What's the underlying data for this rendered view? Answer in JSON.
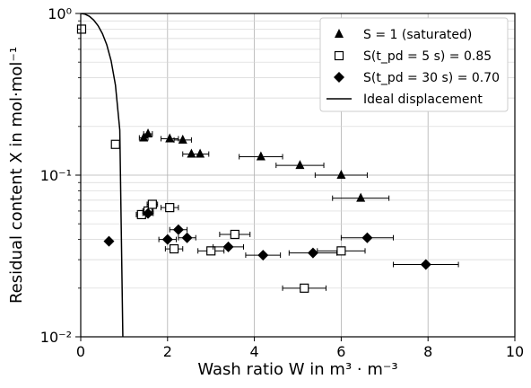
{
  "chart_data": {
    "type": "scatter",
    "xlabel": "Wash ratio W in m³ · m⁻³",
    "ylabel": "Residual content X in mol·mol⁻¹",
    "xlim": [
      0,
      10
    ],
    "ylim": [
      0.01,
      1
    ],
    "y_scale": "log",
    "grid": true,
    "legend_position": "top-right",
    "x_ticks": [
      "0",
      "2",
      "4",
      "6",
      "8",
      "10"
    ],
    "y_ticks": [
      "10⁻²",
      "10⁻¹",
      "10⁰"
    ],
    "series": [
      {
        "name": "S = 1 (saturated)",
        "marker": "triangle",
        "color": "#000000",
        "points": [
          {
            "x": 1.45,
            "y": 0.17,
            "xerr": 0.1
          },
          {
            "x": 1.55,
            "y": 0.18,
            "xerr": 0.1
          },
          {
            "x": 2.05,
            "y": 0.168,
            "xerr": 0.2
          },
          {
            "x": 2.35,
            "y": 0.165,
            "xerr": 0.2
          },
          {
            "x": 2.55,
            "y": 0.135,
            "xerr": 0.2
          },
          {
            "x": 2.75,
            "y": 0.135,
            "xerr": 0.2
          },
          {
            "x": 4.15,
            "y": 0.13,
            "xerr": 0.5
          },
          {
            "x": 5.05,
            "y": 0.115,
            "xerr": 0.55
          },
          {
            "x": 6.0,
            "y": 0.1,
            "xerr": 0.6
          },
          {
            "x": 6.45,
            "y": 0.072,
            "xerr": 0.65
          }
        ]
      },
      {
        "name": "S(t_pd = 5 s) = 0.85",
        "marker": "square-open",
        "color": "#000000",
        "points": [
          {
            "x": 0.02,
            "y": 0.8,
            "xerr": 0.02
          },
          {
            "x": 0.8,
            "y": 0.155,
            "xerr": 0.05
          },
          {
            "x": 1.4,
            "y": 0.057,
            "xerr": 0.12
          },
          {
            "x": 1.55,
            "y": 0.06,
            "xerr": 0.12
          },
          {
            "x": 1.65,
            "y": 0.066,
            "xerr": 0.12
          },
          {
            "x": 2.05,
            "y": 0.063,
            "xerr": 0.2
          },
          {
            "x": 2.15,
            "y": 0.035,
            "xerr": 0.2
          },
          {
            "x": 3.0,
            "y": 0.034,
            "xerr": 0.3
          },
          {
            "x": 3.55,
            "y": 0.043,
            "xerr": 0.35
          },
          {
            "x": 5.15,
            "y": 0.02,
            "xerr": 0.5
          },
          {
            "x": 6.0,
            "y": 0.034,
            "xerr": 0.55
          }
        ]
      },
      {
        "name": "S(t_pd = 30 s) = 0.70",
        "marker": "diamond",
        "color": "#000000",
        "points": [
          {
            "x": 0.65,
            "y": 0.039,
            "xerr": 0.05
          },
          {
            "x": 1.55,
            "y": 0.058,
            "xerr": 0.12
          },
          {
            "x": 2.0,
            "y": 0.04,
            "xerr": 0.2
          },
          {
            "x": 2.25,
            "y": 0.046,
            "xerr": 0.2
          },
          {
            "x": 2.45,
            "y": 0.041,
            "xerr": 0.2
          },
          {
            "x": 3.4,
            "y": 0.036,
            "xerr": 0.35
          },
          {
            "x": 4.2,
            "y": 0.032,
            "xerr": 0.4
          },
          {
            "x": 5.35,
            "y": 0.033,
            "xerr": 0.55
          },
          {
            "x": 6.6,
            "y": 0.041,
            "xerr": 0.6
          },
          {
            "x": 7.95,
            "y": 0.028,
            "xerr": 0.75
          }
        ]
      },
      {
        "name": "Ideal displacement",
        "marker": "line",
        "color": "#000000",
        "x": [
          0,
          0.1,
          0.2,
          0.3,
          0.4,
          0.5,
          0.6,
          0.7,
          0.8,
          0.9,
          0.97
        ],
        "y": [
          1.0,
          0.99,
          0.96,
          0.91,
          0.84,
          0.75,
          0.64,
          0.51,
          0.36,
          0.19,
          0.01
        ]
      }
    ]
  }
}
